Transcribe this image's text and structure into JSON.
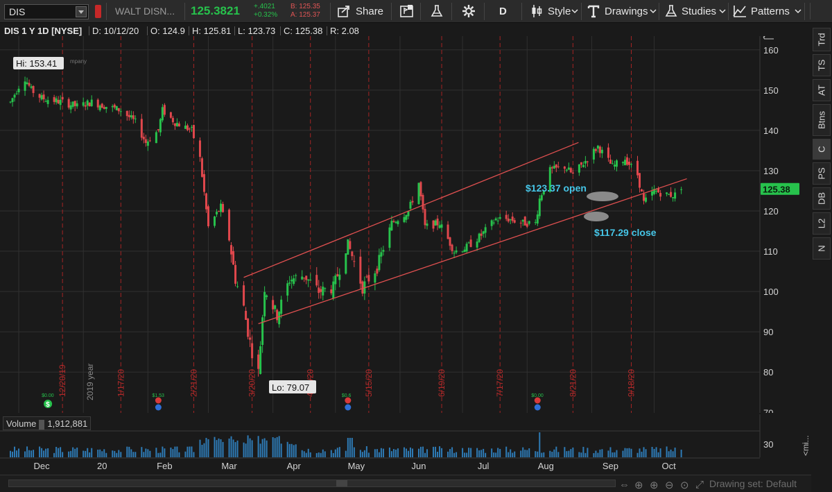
{
  "toolbar": {
    "symbol": "DIS",
    "company_name": "WALT DISN...",
    "last_price": "125.3821",
    "net_change": "+.4021",
    "net_change_pct": "+0.32%",
    "bid": "B: 125.35",
    "ask": "A: 125.37",
    "share_label": "Share",
    "aggregation": "D",
    "style_label": "Style",
    "drawings_label": "Drawings",
    "studies_label": "Studies",
    "patterns_label": "Patterns"
  },
  "header": {
    "title": "DIS 1 Y 1D [NYSE]",
    "date": "D: 10/12/20",
    "open": "O: 124.9",
    "high": "H: 125.81",
    "low": "L: 123.73",
    "close": "C: 125.38",
    "range": "R: 2.08"
  },
  "right_tabs": [
    "Trd",
    "TS",
    "AT",
    "Btns",
    "C",
    "PS",
    "DB",
    "L2",
    "N"
  ],
  "annotations": {
    "hi": "Hi: 153.41",
    "lo": "Lo: 79.07",
    "open_note": "$123.37 open",
    "close_note": "$117.29 close",
    "current_price_tag": "125.38",
    "year_label": "2019 year",
    "company_fragment": "mpany"
  },
  "event_labels": [
    "$0.00",
    "$1.53",
    "$0.6",
    "$0.00"
  ],
  "volume": {
    "label": "Volume",
    "value": "1,912,881",
    "axis_tick": "30",
    "axis_suffix": "<mi..."
  },
  "bottom": {
    "drawing_set": "Drawing set: Default"
  },
  "colors": {
    "up": "#27c24c",
    "down": "#e0474c",
    "grid": "#303030",
    "week_marker": "#a52424",
    "channel": "#e05050",
    "annotation": "#46c6e8",
    "volume_bar": "#2e7bb6",
    "background": "#1a1a1a"
  },
  "chart_data": {
    "type": "candlestick",
    "symbol": "DIS",
    "period": "1 Y",
    "aggregation": "1D",
    "y_ticks": [
      80,
      90,
      100,
      110,
      120,
      130,
      140,
      150,
      160
    ],
    "y_bottom_partial": "70",
    "x_labels": [
      "Dec",
      "20",
      "Feb",
      "Mar",
      "Apr",
      "May",
      "Jun",
      "Jul",
      "Aug",
      "Sep",
      "Oct"
    ],
    "expiration_markers": [
      "12/20/19",
      "1/17/20",
      "2/21/20",
      "3/20/20",
      "4/17/20",
      "5/15/20",
      "6/19/20",
      "7/17/20",
      "8/21/20",
      "9/18/20"
    ],
    "hi": 153.41,
    "lo": 79.07,
    "last": 125.38,
    "channel_upper": [
      [
        103.5,
        "3/16/20"
      ],
      [
        137.0,
        "8/21/20"
      ]
    ],
    "channel_lower": [
      [
        92.0,
        "3/23/20"
      ],
      [
        128.0,
        "10/12/20"
      ]
    ],
    "anchors": [
      [
        "2019-11-25",
        147
      ],
      [
        "2019-11-29",
        151
      ],
      [
        "2019-12-02",
        153
      ],
      [
        "2019-12-05",
        150
      ],
      [
        "2019-12-10",
        148
      ],
      [
        "2019-12-20",
        147
      ],
      [
        "2019-12-27",
        146
      ],
      [
        "2020-01-03",
        147
      ],
      [
        "2020-01-10",
        146
      ],
      [
        "2020-01-17",
        145
      ],
      [
        "2020-01-24",
        142
      ],
      [
        "2020-01-29",
        137
      ],
      [
        "2020-02-04",
        140
      ],
      [
        "2020-02-06",
        145
      ],
      [
        "2020-02-12",
        142
      ],
      [
        "2020-02-20",
        140
      ],
      [
        "2020-02-24",
        133
      ],
      [
        "2020-02-28",
        116
      ],
      [
        "2020-03-05",
        121
      ],
      [
        "2020-03-09",
        113
      ],
      [
        "2020-03-12",
        103
      ],
      [
        "2020-03-16",
        96
      ],
      [
        "2020-03-18",
        90
      ],
      [
        "2020-03-20",
        85
      ],
      [
        "2020-03-23",
        80
      ],
      [
        "2020-03-26",
        101
      ],
      [
        "2020-04-01",
        94
      ],
      [
        "2020-04-07",
        103
      ],
      [
        "2020-04-14",
        104
      ],
      [
        "2020-04-21",
        100
      ],
      [
        "2020-04-28",
        101
      ],
      [
        "2020-05-05",
        112
      ],
      [
        "2020-05-12",
        101
      ],
      [
        "2020-05-19",
        106
      ],
      [
        "2020-05-26",
        117
      ],
      [
        "2020-06-03",
        120
      ],
      [
        "2020-06-08",
        127
      ],
      [
        "2020-06-11",
        116
      ],
      [
        "2020-06-18",
        117
      ],
      [
        "2020-06-25",
        110
      ],
      [
        "2020-07-01",
        111
      ],
      [
        "2020-07-08",
        114
      ],
      [
        "2020-07-15",
        118
      ],
      [
        "2020-07-21",
        118
      ],
      [
        "2020-07-28",
        117
      ],
      [
        "2020-08-03",
        117
      ],
      [
        "2020-08-05",
        123
      ],
      [
        "2020-08-10",
        130
      ],
      [
        "2020-08-17",
        131
      ],
      [
        "2020-08-21",
        129
      ],
      [
        "2020-08-28",
        133
      ],
      [
        "2020-09-02",
        136
      ],
      [
        "2020-09-09",
        131
      ],
      [
        "2020-09-15",
        133
      ],
      [
        "2020-09-21",
        129
      ],
      [
        "2020-09-24",
        122
      ],
      [
        "2020-09-29",
        125
      ],
      [
        "2020-10-05",
        124
      ],
      [
        "2020-10-09",
        124
      ],
      [
        "2020-10-12",
        125.38
      ]
    ]
  }
}
